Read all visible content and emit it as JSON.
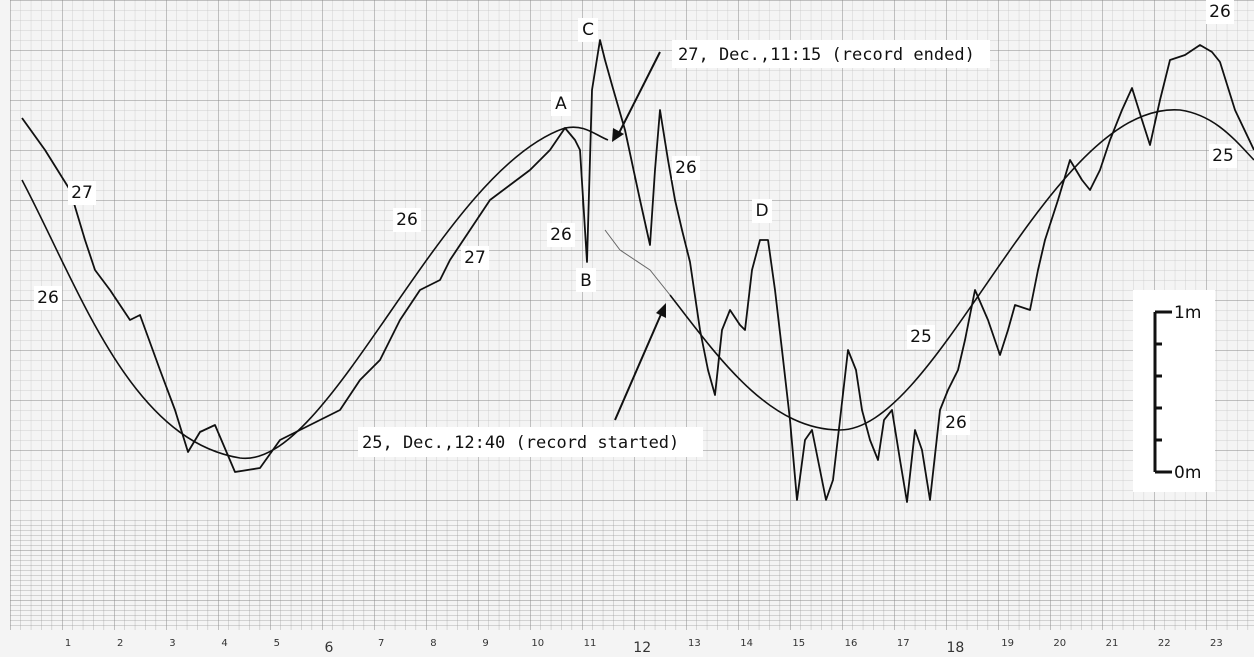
{
  "hour_labels": [
    "1",
    "2",
    "3",
    "4",
    "5",
    "6",
    "7",
    "8",
    "9",
    "10",
    "11",
    "12",
    "13",
    "14",
    "15",
    "16",
    "17",
    "18",
    "19",
    "20",
    "21",
    "22",
    "23"
  ],
  "point_labels": {
    "a": "A",
    "b": "B",
    "c": "C",
    "d": "D"
  },
  "day_labels": [
    "27",
    "26",
    "26",
    "27",
    "26",
    "26",
    "25",
    "26",
    "26",
    "25"
  ],
  "annotations": {
    "record_ended": "27, Dec.,11:15 (record ended)",
    "record_started": "25, Dec.,12:40 (record started)"
  },
  "scale": {
    "top": "1m",
    "bottom": "0m"
  }
}
